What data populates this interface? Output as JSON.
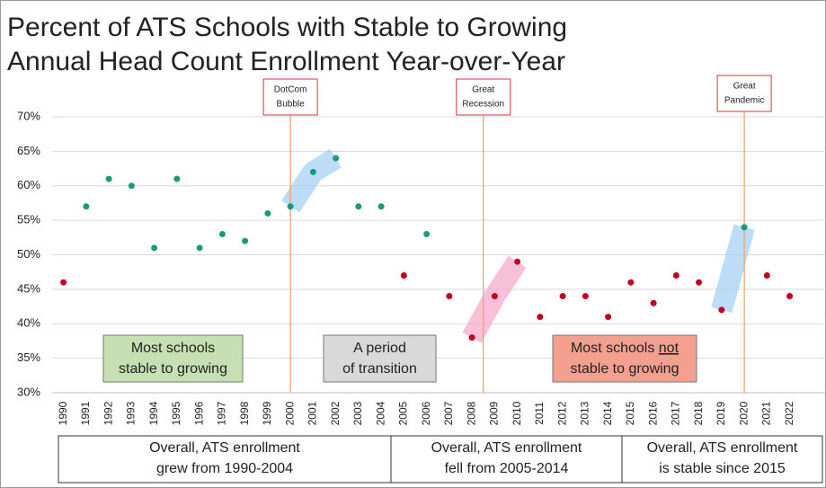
{
  "chart_data": {
    "type": "scatter",
    "title_lines": [
      "Percent of ATS Schools with Stable to Growing",
      "Annual Head Count Enrollment Year-over-Year"
    ],
    "x": [
      1990,
      1991,
      1992,
      1993,
      1994,
      1995,
      1996,
      1997,
      1998,
      1999,
      2000,
      2001,
      2002,
      2003,
      2004,
      2005,
      2006,
      2007,
      2008,
      2009,
      2010,
      2011,
      2012,
      2013,
      2014,
      2015,
      2016,
      2017,
      2018,
      2019,
      2020,
      2021,
      2022
    ],
    "values": [
      46,
      57,
      61,
      60,
      51,
      61,
      51,
      53,
      52,
      56,
      57,
      62,
      64,
      57,
      57,
      47,
      53,
      44,
      38,
      44,
      49,
      41,
      44,
      44,
      41,
      46,
      43,
      47,
      46,
      42,
      54,
      47,
      44
    ],
    "point_colors": [
      "#c0001e",
      "#1a9a7a",
      "#1a9a7a",
      "#1a9a7a",
      "#1a9a7a",
      "#1a9a7a",
      "#1a9a7a",
      "#1a9a7a",
      "#1a9a7a",
      "#1a9a7a",
      "#1a9a7a",
      "#1a9a7a",
      "#1a9a7a",
      "#1a9a7a",
      "#1a9a7a",
      "#c0001e",
      "#1a9a7a",
      "#c0001e",
      "#c0001e",
      "#c0001e",
      "#c0001e",
      "#c0001e",
      "#c0001e",
      "#c0001e",
      "#c0001e",
      "#c0001e",
      "#c0001e",
      "#c0001e",
      "#c0001e",
      "#c0001e",
      "#1a9a7a",
      "#c0001e",
      "#c0001e"
    ],
    "xlim": [
      1989.5,
      2023.6
    ],
    "ylim": [
      30,
      70
    ],
    "yticks": [
      {
        "value": 30,
        "label": "30%"
      },
      {
        "value": 35,
        "label": "35%"
      },
      {
        "value": 40,
        "label": "40%"
      },
      {
        "value": 45,
        "label": "45%"
      },
      {
        "value": 50,
        "label": "50%"
      },
      {
        "value": 55,
        "label": "55%"
      },
      {
        "value": 60,
        "label": "60%"
      },
      {
        "value": 65,
        "label": "65%"
      },
      {
        "value": 70,
        "label": "70%"
      }
    ],
    "grid": true,
    "events": [
      {
        "x": 2000,
        "lines": [
          "DotCom",
          "Bubble"
        ]
      },
      {
        "x": 2008.5,
        "lines": [
          "Great",
          "Recession"
        ]
      },
      {
        "x": 2020,
        "lines": [
          "Great",
          "Pandemic"
        ]
      }
    ],
    "highlights": [
      {
        "from": 10,
        "to": 12,
        "color": "#9fcdf3"
      },
      {
        "from": 18,
        "to": 20,
        "color": "#f7a6c8"
      },
      {
        "from": 29,
        "to": 30,
        "color": "#9fcdf3"
      }
    ],
    "notes": [
      {
        "lines": [
          "Most schools",
          "stable to growing"
        ],
        "color": "#c6e0b4"
      },
      {
        "lines": [
          "A period",
          "of transition"
        ],
        "color": "#d9d9d9"
      },
      {
        "lines_pre": "Most schools ",
        "underlined": "not",
        "line2": "stable to growing",
        "color": "#f4a090"
      }
    ],
    "periods": [
      [
        "Overall, ATS enrollment",
        "grew from 1990-2004"
      ],
      [
        "Overall, ATS enrollment",
        "fell from 2005-2014"
      ],
      [
        "Overall, ATS enrollment",
        "is stable since 2015"
      ]
    ]
  }
}
